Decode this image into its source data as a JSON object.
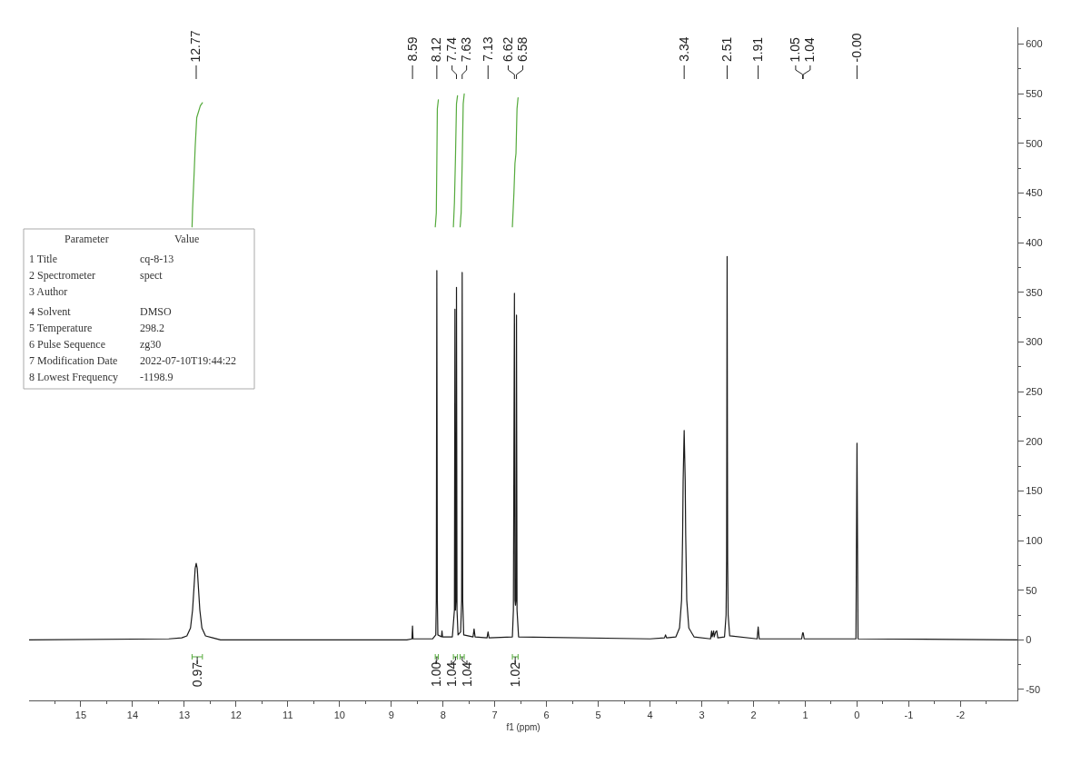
{
  "chart_data": {
    "type": "line",
    "xlabel": "f1 (ppm)",
    "xlim": [
      16,
      -3.1
    ],
    "ylim": [
      -61,
      617
    ],
    "xticks": [
      {
        "value": 15.5,
        "label": null
      },
      15,
      {
        "value": 14.5,
        "label": null
      },
      14,
      {
        "value": 13.5,
        "label": null
      },
      13,
      {
        "value": 12.5,
        "label": null
      },
      12,
      {
        "value": 11.5,
        "label": null
      },
      11,
      {
        "value": 10.5,
        "label": null
      },
      10,
      {
        "value": 9.5,
        "label": null
      },
      9,
      {
        "value": 8.5,
        "label": null
      },
      8,
      {
        "value": 7.5,
        "label": null
      },
      7,
      {
        "value": 6.5,
        "label": null
      },
      6,
      {
        "value": 5.5,
        "label": null
      },
      5,
      {
        "value": 4.5,
        "label": null
      },
      4,
      {
        "value": 3.5,
        "label": null
      },
      3,
      {
        "value": 2.5,
        "label": null
      },
      2,
      {
        "value": 1.5,
        "label": null
      },
      1,
      {
        "value": 0.5,
        "label": null
      },
      0,
      {
        "value": -0.5,
        "label": null
      },
      -1,
      {
        "value": -1.5,
        "label": null
      },
      -2,
      {
        "value": -2.5,
        "label": null
      }
    ],
    "yticks": [
      -50,
      {
        "value": -25,
        "label": null
      },
      0,
      {
        "value": 25,
        "label": null
      },
      50,
      {
        "value": 75,
        "label": null
      },
      100,
      {
        "value": 125,
        "label": null
      },
      150,
      {
        "value": 175,
        "label": null
      },
      200,
      {
        "value": 225,
        "label": null
      },
      250,
      {
        "value": 275,
        "label": null
      },
      300,
      {
        "value": 325,
        "label": null
      },
      350,
      {
        "value": 375,
        "label": null
      },
      400,
      {
        "value": 425,
        "label": null
      },
      450,
      {
        "value": 475,
        "label": null
      },
      500,
      {
        "value": 525,
        "label": null
      },
      550,
      {
        "value": 575,
        "label": null
      },
      600
    ],
    "series": [
      {
        "color": "#1a1a1a",
        "x": [
          16.0,
          13.3,
          13.05,
          12.95,
          12.88,
          12.84,
          12.81,
          12.79,
          12.77,
          12.75,
          12.73,
          12.7,
          12.66,
          12.59,
          12.45,
          12.3,
          8.7,
          8.6,
          8.59,
          8.58,
          8.2,
          8.14,
          8.13,
          8.12,
          8.11,
          8.1,
          8.03,
          8.02,
          8.01,
          7.82,
          7.78,
          7.77,
          7.76,
          7.75,
          7.74,
          7.73,
          7.71,
          7.66,
          7.64,
          7.63,
          7.62,
          7.6,
          7.42,
          7.4,
          7.38,
          7.15,
          7.13,
          7.11,
          6.66,
          6.64,
          6.62,
          6.61,
          6.6,
          6.59,
          6.58,
          6.57,
          6.54,
          4.0,
          3.72,
          3.7,
          3.68,
          3.5,
          3.43,
          3.39,
          3.37,
          3.36,
          3.34,
          3.32,
          3.31,
          3.29,
          3.25,
          3.15,
          2.83,
          2.81,
          2.8,
          2.77,
          2.76,
          2.73,
          2.71,
          2.69,
          2.56,
          2.53,
          2.52,
          2.51,
          2.5,
          2.49,
          2.46,
          1.93,
          1.91,
          1.89,
          1.07,
          1.05,
          1.04,
          1.02,
          0.02,
          0.0,
          -0.02,
          -3.1
        ],
        "values": [
          0,
          1,
          2,
          4,
          12,
          30,
          55,
          72,
          77,
          72,
          55,
          30,
          12,
          4,
          2,
          0,
          0,
          1,
          14,
          1,
          1,
          5,
          40,
          372,
          40,
          5,
          3,
          9,
          3,
          3,
          30,
          333,
          30,
          40,
          355,
          30,
          5,
          8,
          40,
          370,
          40,
          5,
          3,
          11,
          3,
          2,
          8,
          2,
          3,
          30,
          349,
          40,
          35,
          40,
          327,
          30,
          3,
          1,
          2,
          5,
          2,
          3,
          12,
          40,
          105,
          160,
          211,
          160,
          105,
          40,
          12,
          3,
          1,
          9,
          3,
          9,
          3,
          8,
          9,
          2,
          3,
          25,
          80,
          386,
          80,
          25,
          4,
          1,
          13,
          1,
          1,
          7,
          7,
          1,
          1,
          198,
          1,
          0
        ]
      },
      {
        "color": "#55aa3c",
        "x": [
          12.85,
          12.84,
          12.81,
          12.79,
          12.76,
          12.69,
          12.65
        ],
        "values": [
          416,
          434,
          470,
          496,
          526,
          538,
          541
        ]
      },
      {
        "color": "#55aa3c",
        "x": [
          8.15,
          8.13,
          8.12,
          8.11,
          8.09
        ],
        "values": [
          416,
          430,
          480,
          535,
          544
        ]
      },
      {
        "color": "#55aa3c",
        "x": [
          7.8,
          7.78,
          7.76,
          7.74,
          7.72
        ],
        "values": [
          416,
          440,
          485,
          540,
          548
        ]
      },
      {
        "color": "#55aa3c",
        "x": [
          7.67,
          7.65,
          7.63,
          7.61,
          7.59
        ],
        "values": [
          416,
          430,
          480,
          540,
          550
        ]
      },
      {
        "color": "#55aa3c",
        "x": [
          6.66,
          6.63,
          6.61,
          6.59,
          6.57,
          6.55
        ],
        "values": [
          416,
          450,
          480,
          490,
          535,
          546
        ]
      }
    ],
    "annotations": [
      {
        "text": "12.77",
        "x": 12.77
      },
      {
        "text": "8.59",
        "x": 8.59
      },
      {
        "text": "8.12",
        "x": 8.12
      },
      {
        "text": "7.74",
        "x": 7.74
      },
      {
        "text": "7.63",
        "x": 7.63
      },
      {
        "text": "7.13",
        "x": 7.13
      },
      {
        "text": "6.62",
        "x": 6.62
      },
      {
        "text": "6.58",
        "x": 6.58
      },
      {
        "text": "3.34",
        "x": 3.34
      },
      {
        "text": "2.51",
        "x": 2.51
      },
      {
        "text": "1.91",
        "x": 1.91
      },
      {
        "text": "1.05",
        "x": 1.05
      },
      {
        "text": "1.04",
        "x": 1.04
      },
      {
        "text": "-0.00",
        "x": 0.0
      },
      "Parameter",
      "Value",
      "1 Title",
      "cq-8-13",
      "2 Spectrometer",
      "spect",
      "3 Author",
      "4 Solvent",
      "DMSO",
      "5 Temperature",
      "298.2",
      "6 Pulse Sequence",
      "zg30",
      "7 Modification Date",
      "2022-07-10T19:44:22",
      "8 Lowest Frequency",
      "-1198.9",
      "0.97",
      "1.00",
      "1.04",
      "1.04",
      "1.02"
    ]
  }
}
